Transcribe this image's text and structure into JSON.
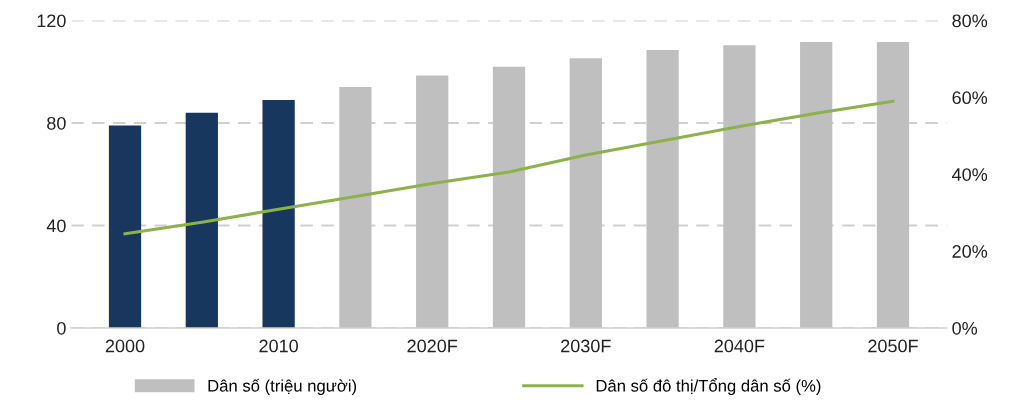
{
  "chart_data": {
    "type": "bar",
    "categories": [
      "2000",
      null,
      "2010",
      null,
      "2020F",
      null,
      "2030F",
      null,
      "2040F",
      null,
      "2050F"
    ],
    "series": [
      {
        "name": "Dân số (triệu người)",
        "color": "#bfbfbf",
        "colors": [
          "#17375e",
          "#17375e",
          "#17375e",
          "#bfbfbf",
          "#bfbfbf",
          "#bfbfbf",
          "#bfbfbf",
          "#bfbfbf",
          "#bfbfbf",
          "#bfbfbf",
          "#bfbfbf"
        ],
        "values": [
          79,
          84,
          89,
          94,
          98.5,
          102,
          105.3,
          108.5,
          110.3,
          111.6,
          111.6
        ]
      },
      {
        "name": "Dân số đô thị/Tổng dân số (%)",
        "type": "line",
        "axis": "y2",
        "color": "#8db24c",
        "values": [
          24.5,
          27.5,
          30.9,
          34.2,
          37.6,
          40.6,
          45,
          48.7,
          52.4,
          55.9,
          59
        ]
      }
    ],
    "ylim": [
      0,
      120
    ],
    "yticks": [
      0,
      40,
      80,
      120
    ],
    "y2lim": [
      0,
      80
    ],
    "y2ticks": [
      {
        "value": 0,
        "label": "0%"
      },
      {
        "value": 20,
        "label": "20%"
      },
      {
        "value": 40,
        "label": "40%"
      },
      {
        "value": 60,
        "label": "60%"
      },
      {
        "value": 80,
        "label": "80%"
      }
    ],
    "grid": "y",
    "legend": "bottom",
    "marker": "none",
    "line_style": "solid"
  }
}
